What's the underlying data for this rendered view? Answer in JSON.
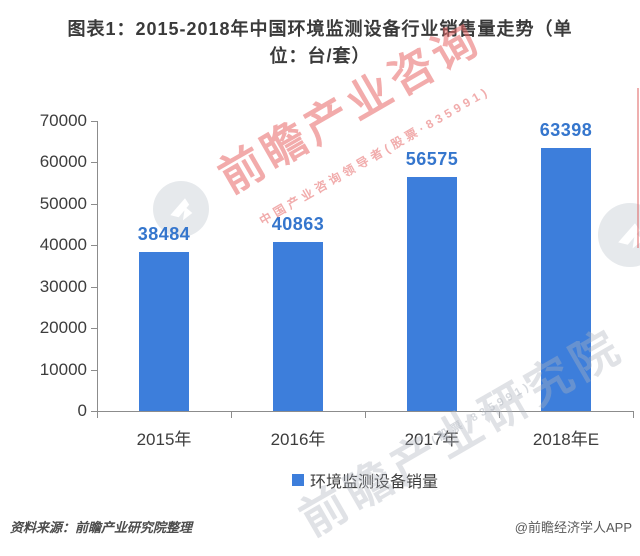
{
  "title": "图表1：2015-2018年中国环境监测设备行业销售量走势（单位：台/套）",
  "chart_data": {
    "type": "bar",
    "categories": [
      "2015年",
      "2016年",
      "2017年",
      "2018年E"
    ],
    "values": [
      38484,
      40863,
      56575,
      63398
    ],
    "series_name": "环境监测设备销量",
    "title": "图表1：2015-2018年中国环境监测设备行业销售量走势（单位：台/套）",
    "xlabel": "",
    "ylabel": "",
    "ylim": [
      0,
      70000
    ],
    "ytick_step": 10000,
    "grid": false,
    "legend_position": "bottom",
    "bar_color": "#3d7edb",
    "value_label_color": "#3576cd",
    "axis_color": "#8c8c8c"
  },
  "legend": {
    "label": "环境监测设备销量",
    "swatch_color": "#3d7edb"
  },
  "footer": {
    "source": "资料来源：前瞻产业研究院整理",
    "credit": "@前瞻经济学人APP"
  },
  "watermarks": {
    "red_large": "前瞻产业咨询",
    "red_small": "中国产业咨询领导者(股票·835991)",
    "gray_large": "前瞻产业研究院",
    "gray_small": "(股票·835991)",
    "logo_name": "qianzhan-bird-logo"
  }
}
